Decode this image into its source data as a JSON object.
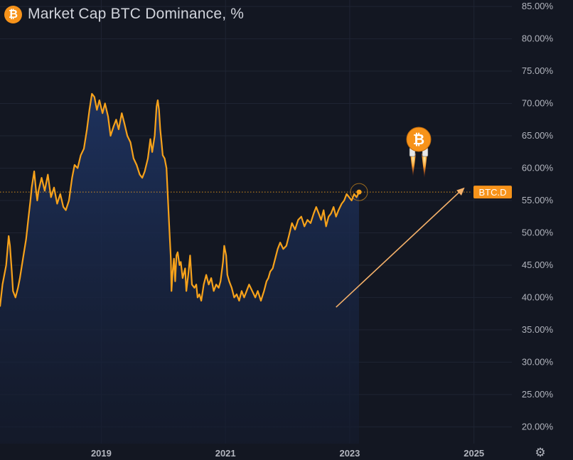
{
  "header": {
    "title": "Market Cap BTC Dominance, %",
    "coin_glyph": "₿",
    "icon": "bitcoin-icon"
  },
  "settings_icon": "gear-icon",
  "colors": {
    "background": "#131722",
    "line": "#f7a21b",
    "area_top": "#1e3360",
    "area_bottom": "#141b2e",
    "grid": "#1f2433",
    "axis_text": "#b2b5be",
    "bitcoin": "#f7931a",
    "trend_arrow": "#f5b16a",
    "tag_bg": "#f7931a"
  },
  "price_tag": {
    "label": "BTC.D",
    "value": 56.3
  },
  "annotations": {
    "rocket_glyph": "₿",
    "trend_arrow": {
      "from": {
        "x": 2022.78,
        "y": 38.5
      },
      "to": {
        "x": 2024.85,
        "y": 57.0
      }
    }
  },
  "chart_data": {
    "type": "area",
    "title": "Market Cap BTC Dominance, %",
    "xlabel": "",
    "ylabel": "",
    "xlim": [
      2017.37,
      2025.61
    ],
    "ylim": [
      17.4,
      86.0
    ],
    "x_ticks": [
      {
        "value": 2019,
        "label": "2019"
      },
      {
        "value": 2021,
        "label": "2021"
      },
      {
        "value": 2023,
        "label": "2023"
      },
      {
        "value": 2025,
        "label": "2025"
      }
    ],
    "y_ticks": [
      {
        "value": 85,
        "label": "85.00%"
      },
      {
        "value": 80,
        "label": "80.00%"
      },
      {
        "value": 75,
        "label": "75.00%"
      },
      {
        "value": 70,
        "label": "70.00%"
      },
      {
        "value": 65,
        "label": "65.00%"
      },
      {
        "value": 60,
        "label": "60.00%"
      },
      {
        "value": 55,
        "label": "55.00%"
      },
      {
        "value": 50,
        "label": "50.00%"
      },
      {
        "value": 45,
        "label": "45.00%"
      },
      {
        "value": 40,
        "label": "40.00%"
      },
      {
        "value": 35,
        "label": "35.00%"
      },
      {
        "value": 30,
        "label": "30.00%"
      },
      {
        "value": 25,
        "label": "25.00%"
      },
      {
        "value": 20,
        "label": "20.00%"
      }
    ],
    "grid": true,
    "series": [
      {
        "points": [
          [
            2017.37,
            38.6
          ],
          [
            2017.41,
            42.0
          ],
          [
            2017.47,
            45.0
          ],
          [
            2017.51,
            49.5
          ],
          [
            2017.53,
            48.0
          ],
          [
            2017.56,
            44.0
          ],
          [
            2017.58,
            41.0
          ],
          [
            2017.62,
            40.0
          ],
          [
            2017.66,
            41.5
          ],
          [
            2017.69,
            43.0
          ],
          [
            2017.74,
            46.0
          ],
          [
            2017.79,
            49.0
          ],
          [
            2017.83,
            52.5
          ],
          [
            2017.86,
            55.0
          ],
          [
            2017.88,
            57.0
          ],
          [
            2017.92,
            59.5
          ],
          [
            2017.95,
            56.5
          ],
          [
            2017.97,
            55.0
          ],
          [
            2017.99,
            56.5
          ],
          [
            2018.04,
            58.5
          ],
          [
            2018.09,
            56.5
          ],
          [
            2018.14,
            59.0
          ],
          [
            2018.19,
            55.5
          ],
          [
            2018.24,
            57.0
          ],
          [
            2018.29,
            54.5
          ],
          [
            2018.34,
            56.0
          ],
          [
            2018.39,
            54.0
          ],
          [
            2018.43,
            53.5
          ],
          [
            2018.48,
            55.0
          ],
          [
            2018.53,
            58.5
          ],
          [
            2018.57,
            60.5
          ],
          [
            2018.62,
            60.0
          ],
          [
            2018.67,
            62.0
          ],
          [
            2018.72,
            63.0
          ],
          [
            2018.77,
            66.0
          ],
          [
            2018.81,
            69.0
          ],
          [
            2018.85,
            71.5
          ],
          [
            2018.89,
            71.0
          ],
          [
            2018.93,
            69.0
          ],
          [
            2018.97,
            70.5
          ],
          [
            2019.02,
            68.5
          ],
          [
            2019.06,
            70.0
          ],
          [
            2019.11,
            68.0
          ],
          [
            2019.15,
            65.0
          ],
          [
            2019.2,
            66.5
          ],
          [
            2019.24,
            67.5
          ],
          [
            2019.28,
            66.0
          ],
          [
            2019.33,
            68.5
          ],
          [
            2019.37,
            67.0
          ],
          [
            2019.42,
            65.0
          ],
          [
            2019.47,
            64.0
          ],
          [
            2019.52,
            61.5
          ],
          [
            2019.57,
            60.5
          ],
          [
            2019.62,
            59.0
          ],
          [
            2019.66,
            58.5
          ],
          [
            2019.7,
            59.5
          ],
          [
            2019.75,
            61.5
          ],
          [
            2019.79,
            64.5
          ],
          [
            2019.82,
            62.5
          ],
          [
            2019.86,
            65.0
          ],
          [
            2019.89,
            69.5
          ],
          [
            2019.91,
            70.5
          ],
          [
            2019.93,
            69.0
          ],
          [
            2019.95,
            66.0
          ],
          [
            2019.97,
            64.0
          ],
          [
            2019.99,
            62.0
          ],
          [
            2020.02,
            61.5
          ],
          [
            2020.05,
            60.0
          ],
          [
            2020.07,
            56.0
          ],
          [
            2020.1,
            50.0
          ],
          [
            2020.12,
            46.0
          ],
          [
            2020.13,
            41.0
          ],
          [
            2020.15,
            44.0
          ],
          [
            2020.17,
            46.0
          ],
          [
            2020.19,
            42.5
          ],
          [
            2020.21,
            46.5
          ],
          [
            2020.23,
            47.0
          ],
          [
            2020.26,
            45.0
          ],
          [
            2020.28,
            45.5
          ],
          [
            2020.31,
            43.0
          ],
          [
            2020.35,
            44.5
          ],
          [
            2020.37,
            41.0
          ],
          [
            2020.4,
            43.5
          ],
          [
            2020.43,
            46.5
          ],
          [
            2020.46,
            42.0
          ],
          [
            2020.5,
            41.5
          ],
          [
            2020.53,
            42.0
          ],
          [
            2020.55,
            40.0
          ],
          [
            2020.58,
            40.5
          ],
          [
            2020.61,
            39.5
          ],
          [
            2020.65,
            42.0
          ],
          [
            2020.69,
            43.5
          ],
          [
            2020.73,
            42.0
          ],
          [
            2020.77,
            43.0
          ],
          [
            2020.81,
            41.0
          ],
          [
            2020.85,
            42.0
          ],
          [
            2020.89,
            41.5
          ],
          [
            2020.92,
            42.5
          ],
          [
            2020.96,
            45.5
          ],
          [
            2020.98,
            48.0
          ],
          [
            2021.01,
            46.5
          ],
          [
            2021.03,
            43.5
          ],
          [
            2021.06,
            42.5
          ],
          [
            2021.1,
            41.5
          ],
          [
            2021.14,
            40.0
          ],
          [
            2021.18,
            40.5
          ],
          [
            2021.22,
            39.5
          ],
          [
            2021.26,
            41.0
          ],
          [
            2021.3,
            40.0
          ],
          [
            2021.34,
            41.0
          ],
          [
            2021.38,
            42.0
          ],
          [
            2021.43,
            41.0
          ],
          [
            2021.48,
            40.0
          ],
          [
            2021.52,
            41.0
          ],
          [
            2021.57,
            39.5
          ],
          [
            2021.62,
            41.0
          ],
          [
            2021.66,
            42.5
          ],
          [
            2021.69,
            43.0
          ],
          [
            2021.72,
            44.0
          ],
          [
            2021.76,
            44.5
          ],
          [
            2021.8,
            46.0
          ],
          [
            2021.84,
            47.5
          ],
          [
            2021.88,
            48.5
          ],
          [
            2021.93,
            47.5
          ],
          [
            2021.98,
            48.0
          ],
          [
            2022.02,
            49.5
          ],
          [
            2022.07,
            51.5
          ],
          [
            2022.12,
            50.5
          ],
          [
            2022.17,
            52.0
          ],
          [
            2022.22,
            52.5
          ],
          [
            2022.27,
            51.0
          ],
          [
            2022.32,
            52.0
          ],
          [
            2022.37,
            51.5
          ],
          [
            2022.42,
            53.0
          ],
          [
            2022.46,
            54.0
          ],
          [
            2022.5,
            53.0
          ],
          [
            2022.54,
            52.0
          ],
          [
            2022.58,
            53.5
          ],
          [
            2022.62,
            51.0
          ],
          [
            2022.66,
            52.5
          ],
          [
            2022.7,
            53.0
          ],
          [
            2022.74,
            54.0
          ],
          [
            2022.78,
            52.5
          ],
          [
            2022.82,
            53.5
          ],
          [
            2022.87,
            54.5
          ],
          [
            2022.91,
            55.0
          ],
          [
            2022.95,
            56.0
          ],
          [
            2022.99,
            55.5
          ],
          [
            2023.03,
            55.0
          ],
          [
            2023.07,
            56.0
          ],
          [
            2023.11,
            55.5
          ],
          [
            2023.15,
            56.3
          ]
        ]
      }
    ]
  }
}
